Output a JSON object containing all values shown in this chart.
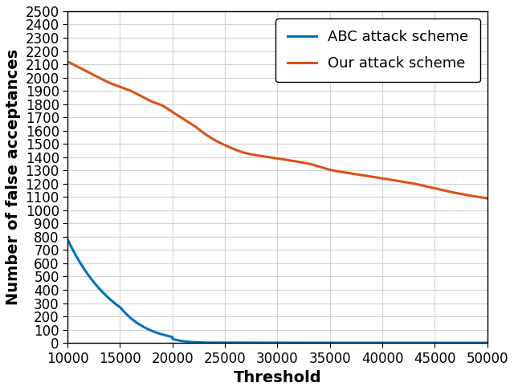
{
  "title": "",
  "xlabel": "Threshold",
  "ylabel": "Number of false acceptances",
  "xlim": [
    10000,
    50000
  ],
  "ylim": [
    0,
    2500
  ],
  "xticks": [
    10000,
    15000,
    20000,
    25000,
    30000,
    35000,
    40000,
    45000,
    50000
  ],
  "yticks": [
    0,
    100,
    200,
    300,
    400,
    500,
    600,
    700,
    800,
    900,
    1000,
    1100,
    1200,
    1300,
    1400,
    1500,
    1600,
    1700,
    1800,
    1900,
    2000,
    2100,
    2200,
    2300,
    2400,
    2500
  ],
  "abc_color": "#0072BD",
  "our_color": "#D95319",
  "abc_label": "ABC attack scheme",
  "our_label": "Our attack scheme",
  "background_color": "#ffffff",
  "grid_color": "#d3d3d3",
  "linewidth": 2.2,
  "legend_fontsize": 13,
  "axis_label_fontsize": 14,
  "tick_fontsize": 12,
  "legend_loc": "upper right"
}
